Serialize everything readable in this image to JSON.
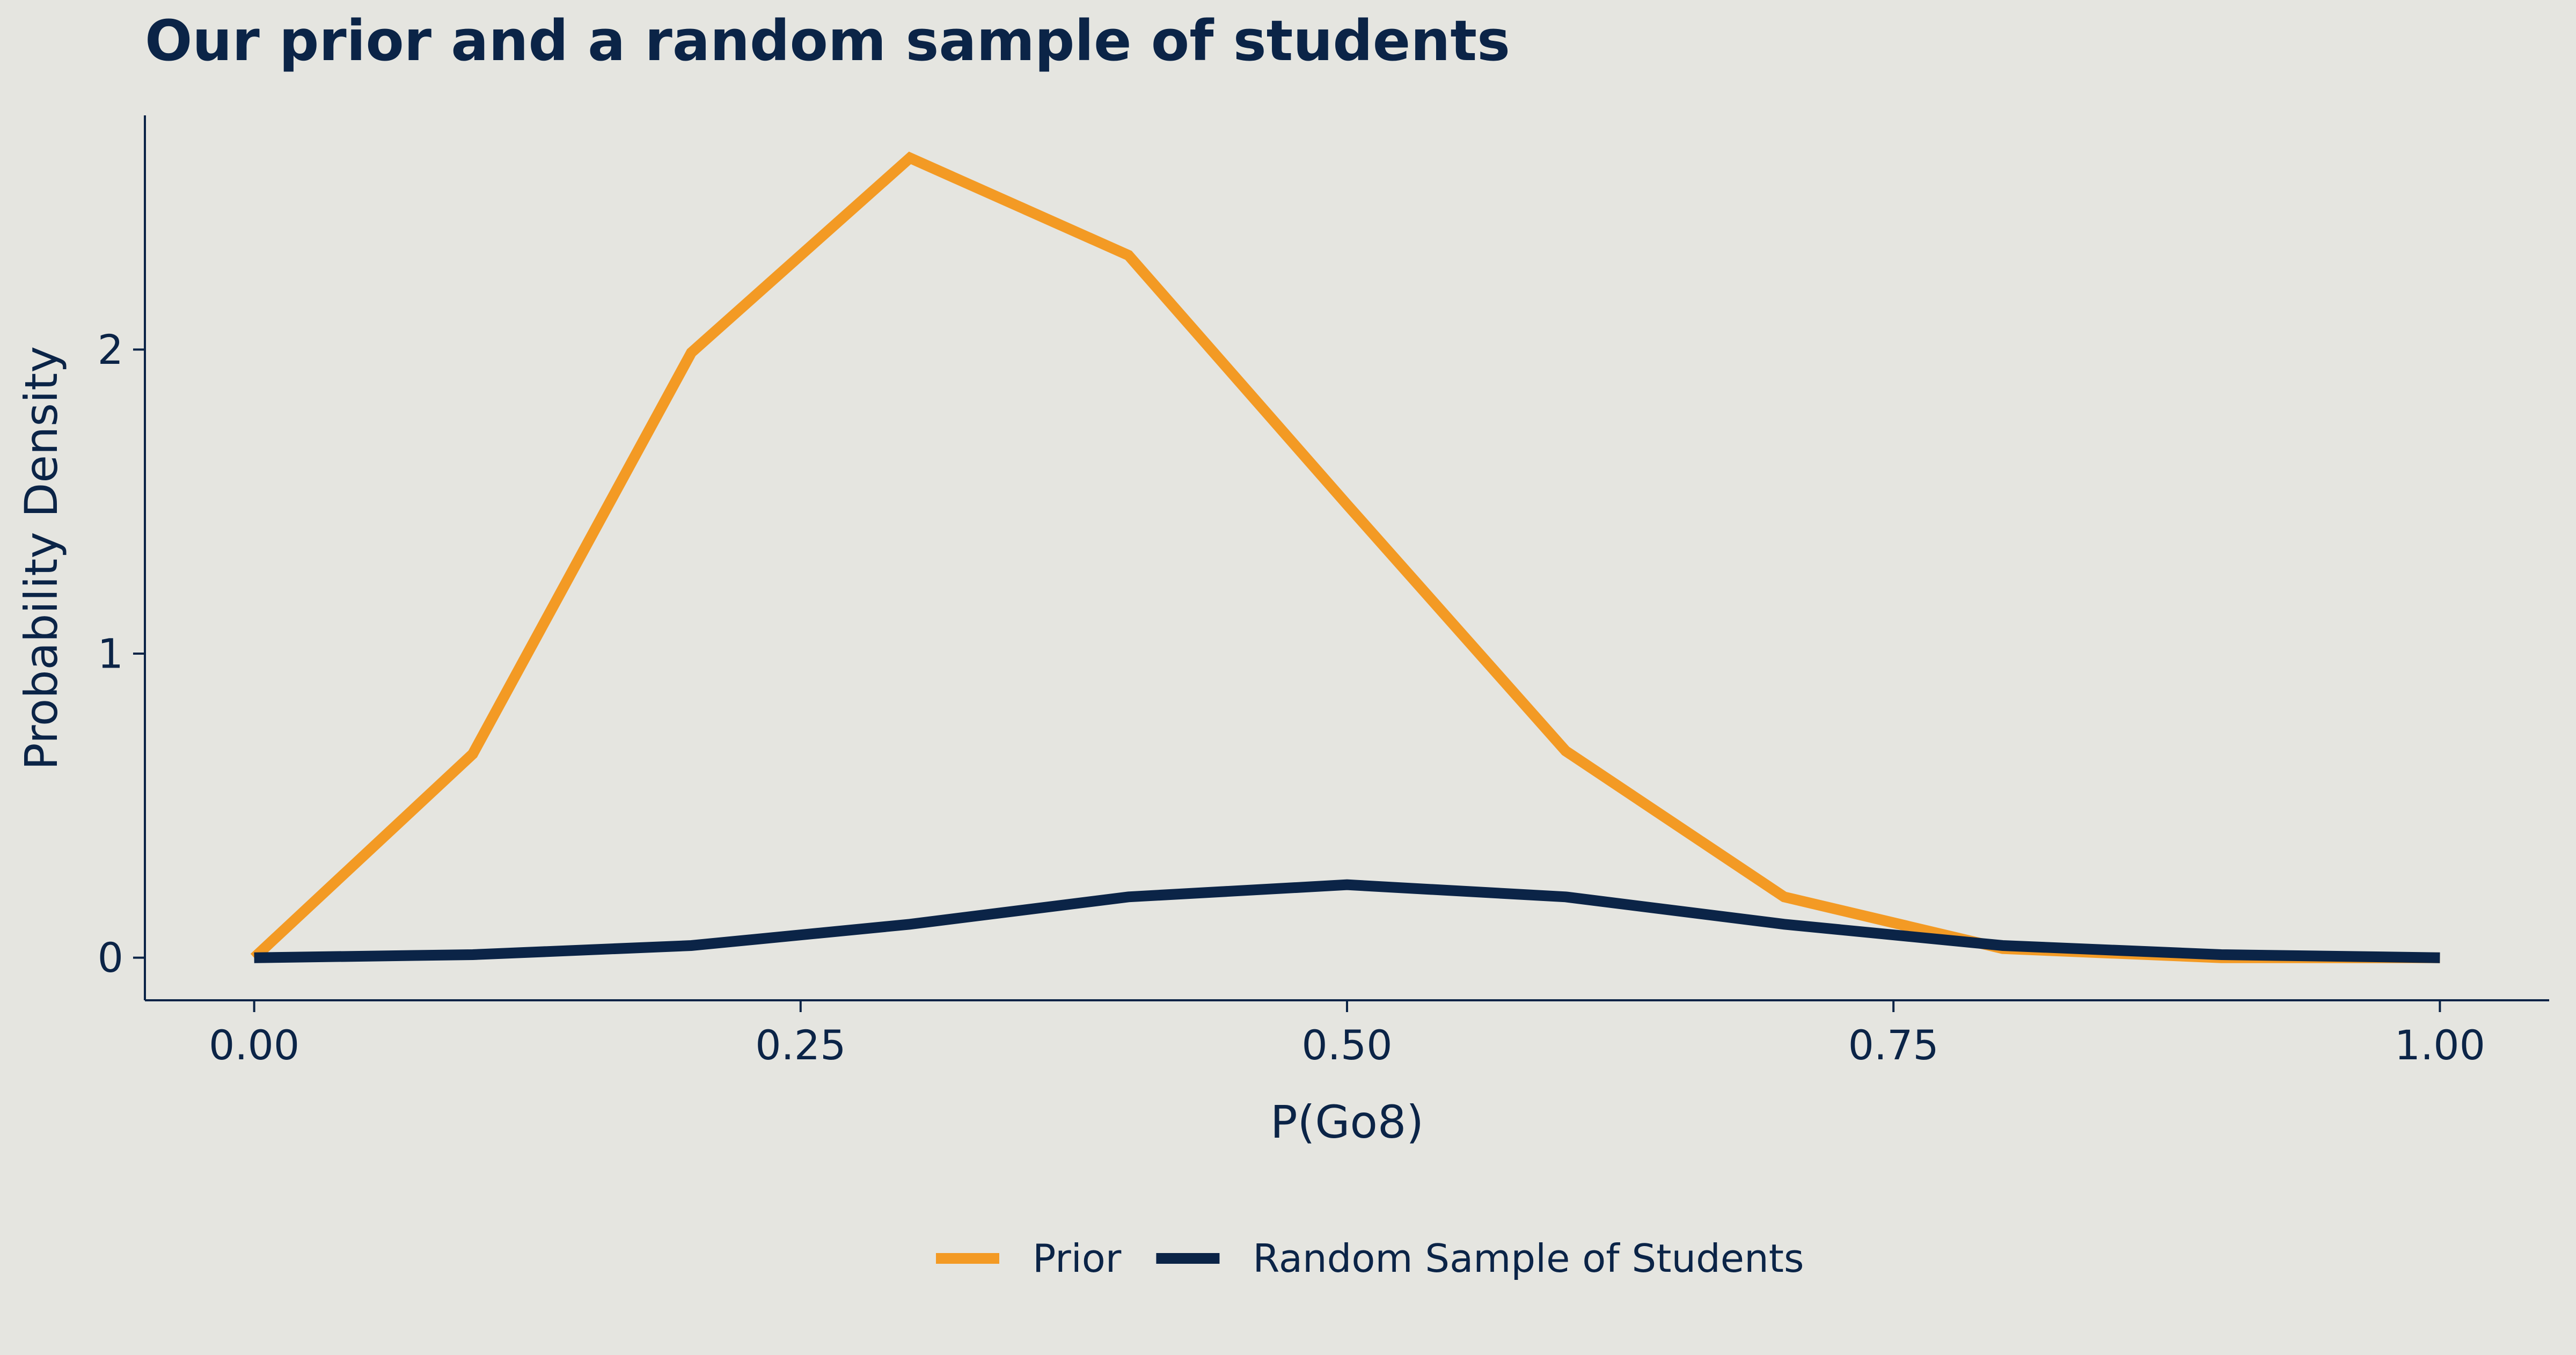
{
  "chart_data": {
    "type": "line",
    "title": "Our prior and a random sample of students",
    "xlabel": "P(Go8)",
    "ylabel": "Probability Density",
    "xlim": [
      -0.05,
      1.05
    ],
    "ylim": [
      -0.14,
      2.77
    ],
    "x_ticks": [
      0.0,
      0.25,
      0.5,
      0.75,
      1.0
    ],
    "x_tick_labels": [
      "0.00",
      "0.25",
      "0.50",
      "0.75",
      "1.00"
    ],
    "y_ticks": [
      0,
      1,
      2
    ],
    "y_tick_labels": [
      "0",
      "1",
      "2"
    ],
    "grid": false,
    "legend_position": "bottom",
    "x": [
      0.0,
      0.1,
      0.2,
      0.3,
      0.4,
      0.5,
      0.6,
      0.7,
      0.8,
      0.9,
      1.0
    ],
    "series": [
      {
        "name": "Prior",
        "color": "#F39A24",
        "values": [
          0.0,
          0.67,
          1.99,
          2.63,
          2.31,
          1.49,
          0.68,
          0.2,
          0.03,
          0.0,
          0.0
        ]
      },
      {
        "name": "Random Sample of Students",
        "color": "#0B2447",
        "values": [
          0.0,
          0.01,
          0.04,
          0.11,
          0.2,
          0.24,
          0.2,
          0.11,
          0.04,
          0.01,
          0.0
        ]
      }
    ]
  }
}
